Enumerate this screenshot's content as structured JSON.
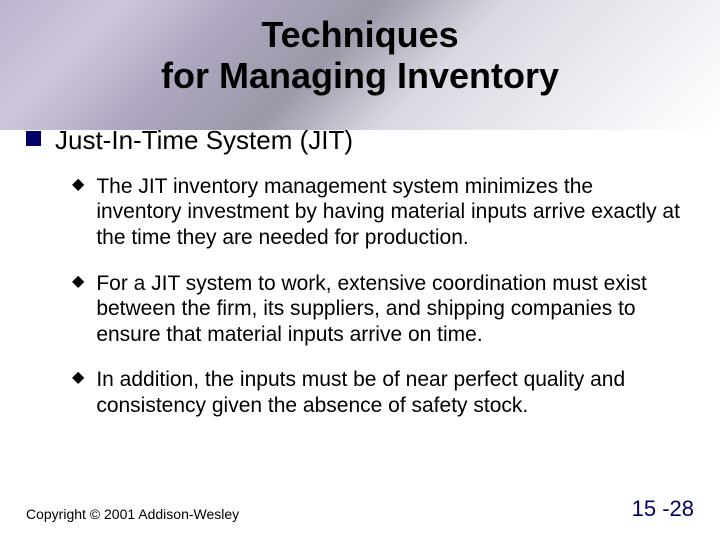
{
  "title_line1": "Techniques",
  "title_line2": "for Managing Inventory",
  "main_bullet": "Just-In-Time System (JIT)",
  "sub_bullets": [
    "The JIT inventory management system minimizes the inventory investment by having material inputs arrive exactly at the time they are needed for production.",
    "For a JIT system to work, extensive coordination must exist between the firm, its suppliers, and shipping companies to ensure that material inputs arrive on time.",
    "In addition, the inputs must be of near perfect quality and consistency given the absence of safety stock."
  ],
  "copyright": "Copyright © 2001 Addison-Wesley",
  "page_number": "15 -28",
  "colors": {
    "accent": "#000066",
    "text": "#000000",
    "background": "#ffffff"
  },
  "fonts": {
    "title_size": 36,
    "main_size": 26,
    "sub_size": 21,
    "copyright_size": 14,
    "pagenum_size": 22
  }
}
